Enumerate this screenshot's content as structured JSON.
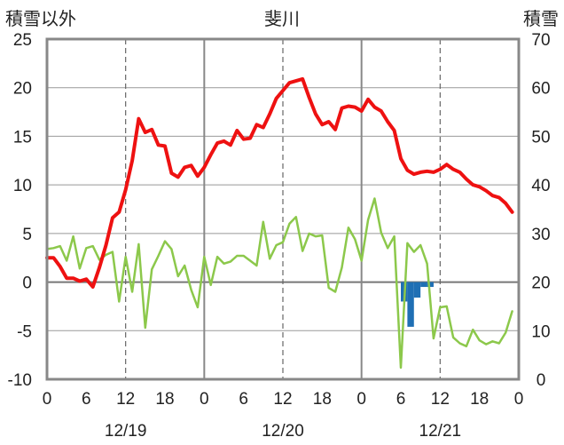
{
  "chart_data": {
    "type": "line",
    "title": "斐川",
    "left_axis_label": "積雪以外",
    "right_axis_label": "積雪",
    "y_left": {
      "min": -10,
      "max": 25,
      "ticks": [
        -10,
        -5,
        0,
        5,
        10,
        15,
        20,
        25
      ]
    },
    "y_right": {
      "min": 0,
      "max": 70,
      "ticks": [
        0,
        10,
        20,
        30,
        40,
        50,
        60,
        70
      ]
    },
    "x": {
      "min": 0,
      "max": 72,
      "ticks": [
        0,
        6,
        12,
        18,
        24,
        30,
        36,
        42,
        48,
        54,
        60,
        66,
        72
      ],
      "tick_labels": [
        "0",
        "6",
        "12",
        "18",
        "0",
        "6",
        "12",
        "18",
        "0",
        "6",
        "12",
        "18",
        "0"
      ],
      "date_labels": [
        {
          "hour": 12,
          "label": "12/19"
        },
        {
          "hour": 36,
          "label": "12/20"
        },
        {
          "hour": 60,
          "label": "12/21"
        }
      ],
      "day_lines": [
        24,
        48
      ],
      "dashed_lines": [
        12,
        36,
        60
      ]
    },
    "grid": true,
    "colors": {
      "temperature": "#ee1111",
      "wind": "#8cc84b",
      "precipitation": "#1f6fb4",
      "snow_depth": "#7a3fa0",
      "grid_dash": "#666666",
      "day_line": "#888888",
      "frame": "#888888"
    },
    "series": [
      {
        "key": "temperature",
        "axis": "left",
        "x": [
          0,
          1,
          2,
          3,
          4,
          5,
          6,
          7,
          8,
          9,
          10,
          11,
          12,
          13,
          14,
          15,
          16,
          17,
          18,
          19,
          20,
          21,
          22,
          23,
          24,
          25,
          26,
          27,
          28,
          29,
          30,
          31,
          32,
          33,
          34,
          35,
          36,
          37,
          38,
          39,
          40,
          41,
          42,
          43,
          44,
          45,
          46,
          47,
          48,
          49,
          50,
          51,
          52,
          53,
          54,
          55,
          56,
          57,
          58,
          59,
          60,
          61,
          62,
          63,
          64,
          65,
          66,
          67,
          68,
          69,
          70,
          71
        ],
        "values": [
          2.5,
          2.5,
          1.6,
          0.4,
          0.4,
          0.1,
          0.3,
          -0.5,
          1.5,
          3.8,
          6.6,
          7.2,
          9.5,
          12.5,
          16.8,
          15.4,
          15.7,
          14.1,
          14.0,
          11.2,
          10.8,
          11.8,
          12.0,
          10.9,
          11.8,
          13.1,
          14.3,
          14.5,
          14.1,
          15.6,
          14.7,
          14.8,
          16.2,
          15.9,
          17.3,
          18.9,
          19.7,
          20.5,
          20.7,
          20.9,
          19.0,
          17.3,
          16.2,
          16.5,
          15.7,
          17.9,
          18.1,
          18.0,
          17.6,
          18.8,
          18.0,
          17.6,
          16.5,
          15.6,
          12.7,
          11.5,
          11.1,
          11.3,
          11.4,
          11.3,
          11.6,
          12.1,
          11.6,
          11.3,
          10.6,
          10.0,
          9.8,
          9.4,
          8.9,
          8.7,
          8.1,
          7.2
        ]
      },
      {
        "key": "wind",
        "axis": "left",
        "x": [
          0,
          1,
          2,
          3,
          4,
          5,
          6,
          7,
          8,
          9,
          10,
          11,
          12,
          13,
          14,
          15,
          16,
          17,
          18,
          19,
          20,
          21,
          22,
          23,
          24,
          25,
          26,
          27,
          28,
          29,
          30,
          31,
          32,
          33,
          34,
          35,
          36,
          37,
          38,
          39,
          40,
          41,
          42,
          43,
          44,
          45,
          46,
          47,
          48,
          49,
          50,
          51,
          52,
          53,
          54,
          55,
          56,
          57,
          58,
          59,
          60,
          61,
          62,
          63,
          64,
          65,
          66,
          67,
          68,
          69,
          70,
          71
        ],
        "values": [
          3.4,
          3.5,
          3.7,
          2.2,
          4.7,
          1.4,
          3.5,
          3.7,
          2.3,
          2.8,
          3.1,
          -2.0,
          2.6,
          -1.0,
          3.9,
          -4.7,
          1.3,
          2.7,
          4.2,
          3.4,
          0.6,
          1.7,
          -0.8,
          -2.6,
          2.6,
          -0.3,
          2.6,
          1.9,
          2.1,
          2.7,
          2.7,
          2.2,
          1.7,
          6.2,
          2.4,
          3.8,
          4.1,
          6.0,
          6.7,
          3.2,
          5.0,
          4.7,
          4.8,
          -0.6,
          -1.0,
          1.5,
          5.6,
          4.4,
          2.2,
          6.4,
          8.6,
          5.1,
          3.5,
          4.7,
          -8.8,
          4.0,
          3.1,
          3.8,
          1.9,
          -5.8,
          -2.6,
          -2.5,
          -5.7,
          -6.3,
          -6.6,
          -4.9,
          -6.0,
          -6.4,
          -6.1,
          -6.3,
          -5.2,
          -3.0
        ]
      },
      {
        "key": "precipitation",
        "axis": "left",
        "x": [
          54,
          55,
          56,
          57,
          58,
          59
        ],
        "values": [
          -2.0,
          -4.6,
          -1.6,
          -0.5,
          -0.5,
          0
        ]
      },
      {
        "key": "snow_depth",
        "axis": "right",
        "x": [
          0,
          72
        ],
        "values": [
          0,
          0
        ]
      }
    ]
  }
}
